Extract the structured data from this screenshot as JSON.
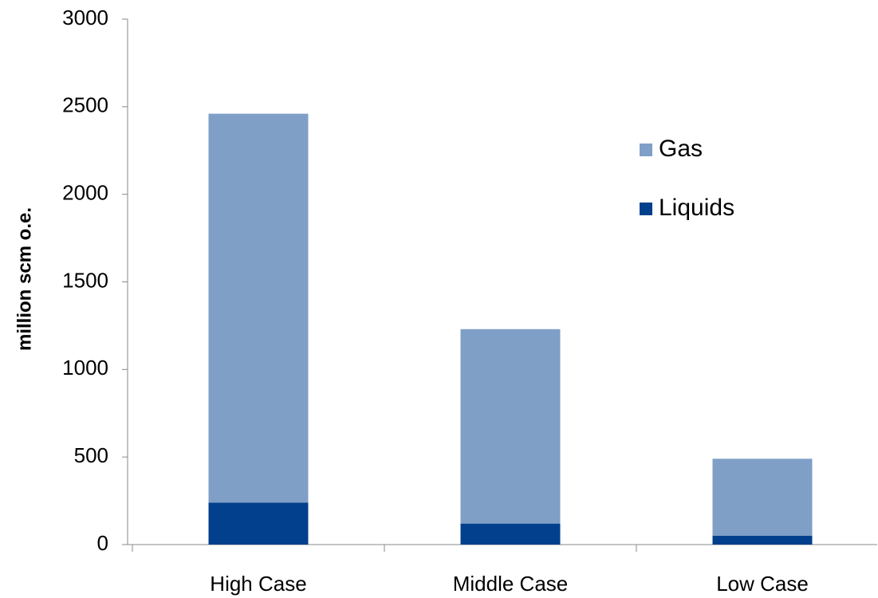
{
  "chart_data": {
    "type": "stacked_bar",
    "y_label": "million scm o.e.",
    "categories": [
      "High Case",
      "Middle Case",
      "Low Case"
    ],
    "series": [
      {
        "name": "Liquids",
        "color": "#023f8c",
        "values": [
          240,
          120,
          50
        ]
      },
      {
        "name": "Gas",
        "color": "#7f9fc7",
        "values": [
          2220,
          1110,
          440
        ]
      }
    ],
    "ylim": [
      0,
      3000
    ],
    "yticks": [
      0,
      500,
      1000,
      1500,
      2000,
      2500,
      3000
    ],
    "legend": "upper right"
  }
}
